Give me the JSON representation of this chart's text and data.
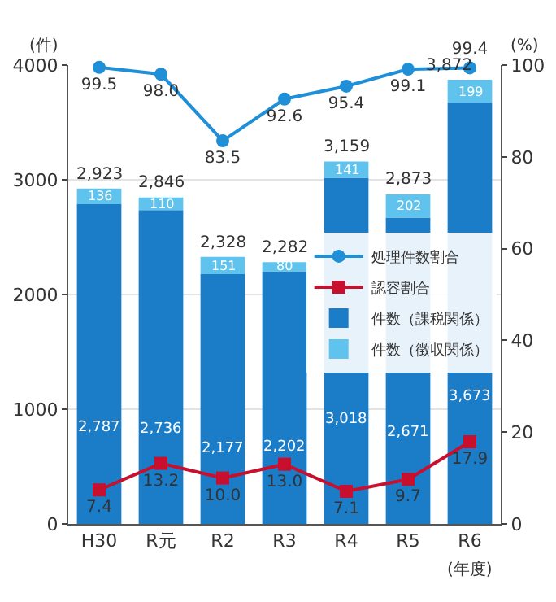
{
  "chart_data": {
    "type": "bar",
    "stacked": true,
    "categories": [
      "H30",
      "R元",
      "R2",
      "R3",
      "R4",
      "R5",
      "R6"
    ],
    "xlabel": "(年度)",
    "ylabel": "(件)",
    "y2label": "(%)",
    "ylim": [
      0,
      4000
    ],
    "yticks": [
      0,
      1000,
      2000,
      3000,
      4000
    ],
    "y2lim": [
      0,
      100
    ],
    "y2ticks": [
      0,
      20,
      40,
      60,
      80,
      100
    ],
    "grid": "y",
    "legend": "right",
    "series": [
      {
        "name": "処理件数割合",
        "type": "line",
        "axis": "y2",
        "marker": "circle",
        "color": "#1f8fd8",
        "values": [
          99.5,
          98.0,
          83.5,
          92.6,
          95.4,
          99.1,
          99.4
        ],
        "value_labels": [
          "99.5",
          "98.0",
          "83.5",
          "92.6",
          "95.4",
          "99.1",
          "99.4"
        ]
      },
      {
        "name": "認容割合",
        "type": "line",
        "axis": "y2",
        "marker": "square",
        "color": "#c8102e",
        "values": [
          7.4,
          13.2,
          10.0,
          13.0,
          7.1,
          9.7,
          17.9
        ],
        "value_labels": [
          "7.4",
          "13.2",
          "10.0",
          "13.0",
          "7.1",
          "9.7",
          "17.9"
        ]
      },
      {
        "name": "件数（課税関係）",
        "color": "#1b7cc8",
        "values": [
          2787,
          2736,
          2177,
          2202,
          3018,
          2671,
          3673
        ],
        "value_labels": [
          "2,787",
          "2,736",
          "2,177",
          "2,202",
          "3,018",
          "2,671",
          "3,673"
        ]
      },
      {
        "name": "件数（徴収関係）",
        "color": "#5fc3ee",
        "values": [
          136,
          110,
          151,
          80,
          141,
          202,
          199
        ],
        "value_labels": [
          "136",
          "110",
          "151",
          "80",
          "141",
          "202",
          "199"
        ]
      }
    ],
    "totals": [
      "2,923",
      "2,846",
      "2,328",
      "2,282",
      "3,159",
      "2,873",
      "3,872"
    ]
  }
}
